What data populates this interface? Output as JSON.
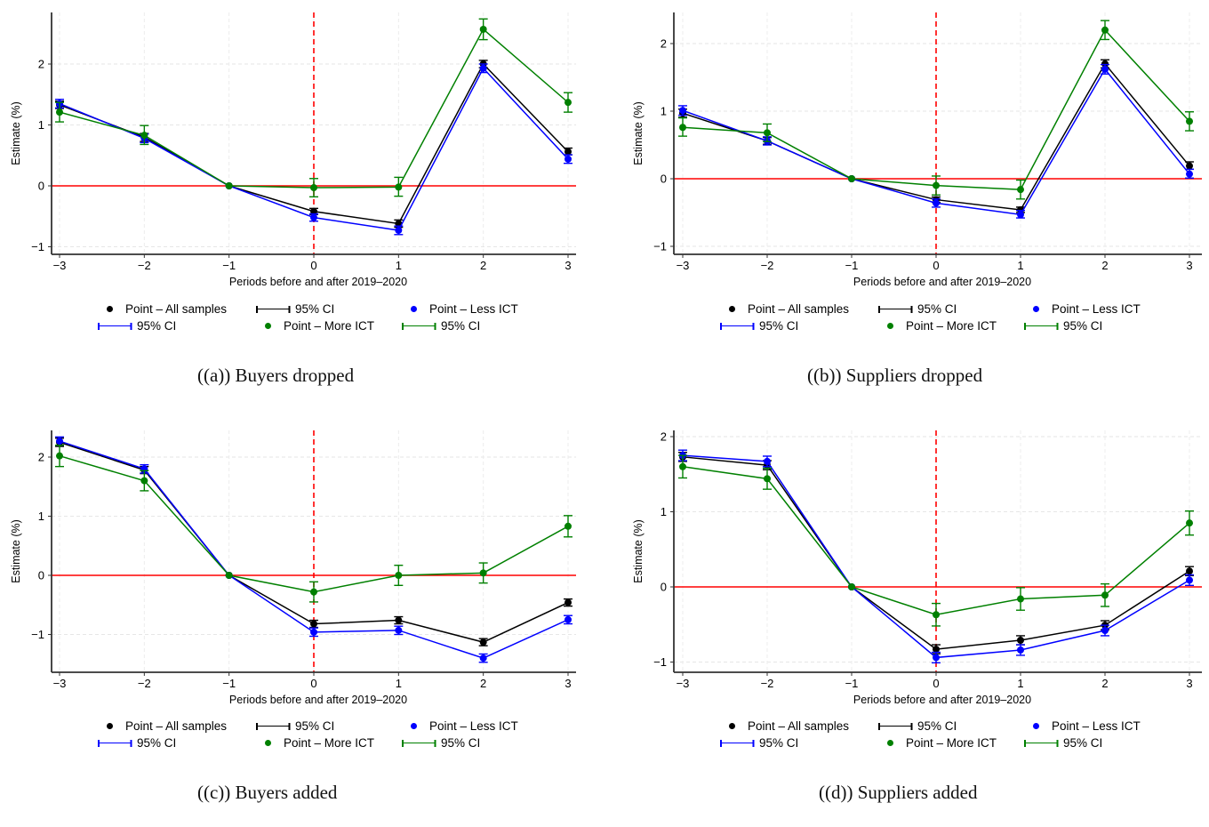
{
  "colors": {
    "all": "#000000",
    "less": "#0000ff",
    "more": "#008000",
    "zero_line": "#ff0000",
    "vline": "#ff0000"
  },
  "chart_data": [
    {
      "type": "line",
      "caption": "((a)) Buyers dropped",
      "xlabel": "Periods before and after 2019–2020",
      "ylabel": "Estimate (%)",
      "x": [
        -3,
        -2,
        -1,
        0,
        1,
        2,
        3
      ],
      "xticks": [
        "−3",
        "−2",
        "−1",
        "0",
        "1",
        "2",
        "3"
      ],
      "yticks": [
        -1,
        0,
        1,
        2
      ],
      "ytick_labels": [
        "−1",
        "0",
        "1",
        "2"
      ],
      "ylim": [
        -1.1,
        2.8
      ],
      "hline": 0,
      "vline": 0,
      "series": [
        {
          "name": "Point – All samples",
          "key": "all",
          "values": [
            1.33,
            0.8,
            0,
            -0.42,
            -0.62,
            2.0,
            0.56
          ],
          "ci_low": [
            1.27,
            0.73,
            0,
            -0.47,
            -0.68,
            1.94,
            0.51
          ],
          "ci_high": [
            1.39,
            0.86,
            0,
            -0.37,
            -0.56,
            2.06,
            0.62
          ]
        },
        {
          "name": "Point – Less ICT",
          "key": "less",
          "values": [
            1.35,
            0.78,
            0,
            -0.52,
            -0.73,
            1.93,
            0.44
          ],
          "ci_low": [
            1.28,
            0.71,
            0,
            -0.58,
            -0.8,
            1.86,
            0.37
          ],
          "ci_high": [
            1.42,
            0.85,
            0,
            -0.46,
            -0.66,
            2.0,
            0.51
          ]
        },
        {
          "name": "Point – More ICT",
          "key": "more",
          "values": [
            1.21,
            0.83,
            0,
            -0.03,
            -0.02,
            2.57,
            1.37
          ],
          "ci_low": [
            1.05,
            0.68,
            0,
            -0.18,
            -0.17,
            2.4,
            1.21
          ],
          "ci_high": [
            1.37,
            0.99,
            0,
            0.12,
            0.14,
            2.74,
            1.53
          ]
        }
      ]
    },
    {
      "type": "line",
      "caption": "((b)) Suppliers dropped",
      "xlabel": "Periods before and after 2019–2020",
      "ylabel": "Estimate (%)",
      "x": [
        -3,
        -2,
        -1,
        0,
        1,
        2,
        3
      ],
      "xticks": [
        "−3",
        "−2",
        "−1",
        "0",
        "1",
        "2",
        "3"
      ],
      "yticks": [
        -1,
        0,
        1,
        2
      ],
      "ytick_labels": [
        "−1",
        "0",
        "1",
        "2"
      ],
      "ylim": [
        -1.1,
        2.45
      ],
      "hline": 0,
      "vline": 0,
      "series": [
        {
          "name": "Point – All samples",
          "key": "all",
          "values": [
            0.97,
            0.56,
            0,
            -0.31,
            -0.46,
            1.7,
            0.19
          ],
          "ci_low": [
            0.91,
            0.51,
            0,
            -0.35,
            -0.5,
            1.64,
            0.14
          ],
          "ci_high": [
            1.03,
            0.61,
            0,
            -0.27,
            -0.42,
            1.76,
            0.25
          ]
        },
        {
          "name": "Point – Less ICT",
          "key": "less",
          "values": [
            1.01,
            0.56,
            0,
            -0.36,
            -0.53,
            1.62,
            0.07
          ],
          "ci_low": [
            0.94,
            0.5,
            0,
            -0.42,
            -0.58,
            1.55,
            0.01
          ],
          "ci_high": [
            1.08,
            0.62,
            0,
            -0.3,
            -0.47,
            1.69,
            0.14
          ]
        },
        {
          "name": "Point – More ICT",
          "key": "more",
          "values": [
            0.76,
            0.68,
            0,
            -0.1,
            -0.16,
            2.2,
            0.85
          ],
          "ci_low": [
            0.63,
            0.55,
            0,
            -0.24,
            -0.3,
            2.06,
            0.71
          ],
          "ci_high": [
            0.9,
            0.81,
            0,
            0.04,
            -0.02,
            2.34,
            0.99
          ]
        }
      ]
    },
    {
      "type": "line",
      "caption": "((c)) Buyers added",
      "xlabel": "Periods before and after 2019–2020",
      "ylabel": "Estimate (%)",
      "x": [
        -3,
        -2,
        -1,
        0,
        1,
        2,
        3
      ],
      "xticks": [
        "−3",
        "−2",
        "−1",
        "0",
        "1",
        "2",
        "3"
      ],
      "yticks": [
        -1,
        0,
        1,
        2
      ],
      "ytick_labels": [
        "−1",
        "0",
        "1",
        "2"
      ],
      "ylim": [
        -1.6,
        2.45
      ],
      "hline": 0,
      "vline": 0,
      "series": [
        {
          "name": "Point – All samples",
          "key": "all",
          "values": [
            2.25,
            1.78,
            0,
            -0.82,
            -0.76,
            -1.13,
            -0.46
          ],
          "ci_low": [
            2.18,
            1.72,
            0,
            -0.88,
            -0.82,
            -1.19,
            -0.52
          ],
          "ci_high": [
            2.32,
            1.84,
            0,
            -0.76,
            -0.7,
            -1.07,
            -0.4
          ]
        },
        {
          "name": "Point – Less ICT",
          "key": "less",
          "values": [
            2.27,
            1.8,
            0,
            -0.96,
            -0.93,
            -1.4,
            -0.75
          ],
          "ci_low": [
            2.2,
            1.73,
            0,
            -1.03,
            -1.0,
            -1.47,
            -0.82
          ],
          "ci_high": [
            2.34,
            1.87,
            0,
            -0.89,
            -0.86,
            -1.33,
            -0.68
          ]
        },
        {
          "name": "Point – More ICT",
          "key": "more",
          "values": [
            2.02,
            1.6,
            0,
            -0.28,
            0.0,
            0.04,
            0.83
          ],
          "ci_low": [
            1.84,
            1.43,
            0,
            -0.45,
            -0.17,
            -0.13,
            0.65
          ],
          "ci_high": [
            2.2,
            1.77,
            0,
            -0.11,
            0.17,
            0.21,
            1.01
          ]
        }
      ]
    },
    {
      "type": "line",
      "caption": "((d)) Suppliers added",
      "xlabel": "Periods before and after 2019–2020",
      "ylabel": "Estimate (%)",
      "x": [
        -3,
        -2,
        -1,
        0,
        1,
        2,
        3
      ],
      "xticks": [
        "−3",
        "−2",
        "−1",
        "0",
        "1",
        "2",
        "3"
      ],
      "yticks": [
        -1,
        0,
        1,
        2
      ],
      "ytick_labels": [
        "−1",
        "0",
        "1",
        "2"
      ],
      "ylim": [
        -1.1,
        2.05
      ],
      "hline": 0,
      "vline": 0,
      "series": [
        {
          "name": "Point – All samples",
          "key": "all",
          "values": [
            1.73,
            1.62,
            0,
            -0.83,
            -0.71,
            -0.51,
            0.21
          ],
          "ci_low": [
            1.67,
            1.56,
            0,
            -0.89,
            -0.77,
            -0.57,
            0.15
          ],
          "ci_high": [
            1.79,
            1.68,
            0,
            -0.77,
            -0.65,
            -0.45,
            0.27
          ]
        },
        {
          "name": "Point – Less ICT",
          "key": "less",
          "values": [
            1.75,
            1.67,
            0,
            -0.94,
            -0.84,
            -0.58,
            0.09
          ],
          "ci_low": [
            1.68,
            1.6,
            0,
            -1.01,
            -0.91,
            -0.65,
            0.02
          ],
          "ci_high": [
            1.82,
            1.74,
            0,
            -0.87,
            -0.77,
            -0.51,
            0.16
          ]
        },
        {
          "name": "Point – More ICT",
          "key": "more",
          "values": [
            1.6,
            1.44,
            0,
            -0.37,
            -0.16,
            -0.11,
            0.85
          ],
          "ci_low": [
            1.45,
            1.3,
            0,
            -0.52,
            -0.31,
            -0.26,
            0.69
          ],
          "ci_high": [
            1.75,
            1.58,
            0,
            -0.22,
            -0.01,
            0.04,
            1.01
          ]
        }
      ]
    }
  ],
  "legend": {
    "all_point": "Point – All samples",
    "all_ci": "95% CI",
    "less_point": "Point – Less ICT",
    "less_ci": "95% CI",
    "more_point": "Point – More ICT",
    "more_ci": "95% CI"
  }
}
